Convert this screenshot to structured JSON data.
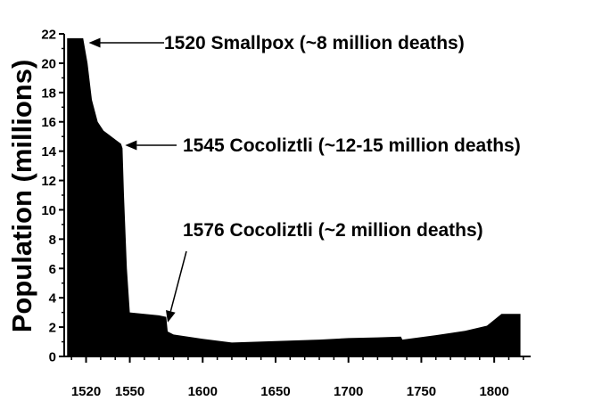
{
  "chart_data": {
    "type": "area",
    "title": "",
    "xlabel": "",
    "ylabel": "Population (millions)",
    "xlim": [
      1505,
      1825
    ],
    "ylim": [
      0,
      22
    ],
    "x_ticks": [
      1520,
      1550,
      1600,
      1650,
      1700,
      1750,
      1800
    ],
    "x_tick_labels": [
      "1520",
      "1550",
      "1600",
      "1650",
      "1700",
      "1750",
      "1800"
    ],
    "y_ticks": [
      0,
      2,
      4,
      6,
      8,
      10,
      12,
      14,
      16,
      18,
      20,
      22
    ],
    "y_tick_labels": [
      "0",
      "2",
      "4",
      "6",
      "8",
      "10",
      "12",
      "14",
      "16",
      "18",
      "20",
      "22"
    ],
    "grid": false,
    "fill_color": "#000000",
    "series": [
      {
        "x": [
          1507,
          1518,
          1521,
          1524,
          1528,
          1532,
          1536,
          1540,
          1544,
          1545,
          1546,
          1548,
          1550,
          1560,
          1570,
          1575,
          1576,
          1580,
          1600,
          1620,
          1650,
          1680,
          1700,
          1720,
          1736,
          1737,
          1760,
          1780,
          1795,
          1805,
          1818
        ],
        "y": [
          21.7,
          21.7,
          20.0,
          17.5,
          16.0,
          15.4,
          15.1,
          14.8,
          14.5,
          14.2,
          11.0,
          6.0,
          3.0,
          2.9,
          2.8,
          2.7,
          1.7,
          1.5,
          1.2,
          0.95,
          1.05,
          1.15,
          1.25,
          1.3,
          1.35,
          1.15,
          1.45,
          1.75,
          2.1,
          2.9,
          2.9
        ]
      }
    ],
    "annotations": [
      {
        "text": "1520  Smallpox (~8 million deaths)",
        "x": 1520,
        "y": 21.5,
        "arrow": "horizontal"
      },
      {
        "text": "1545  Cocoliztli (~12-15 million deaths)",
        "x": 1545,
        "y": 14.5,
        "arrow": "horizontal"
      },
      {
        "text": "1576  Cocoliztli (~2 million deaths)",
        "x": 1576,
        "y": 2.8,
        "arrow": "diagonal"
      }
    ]
  }
}
